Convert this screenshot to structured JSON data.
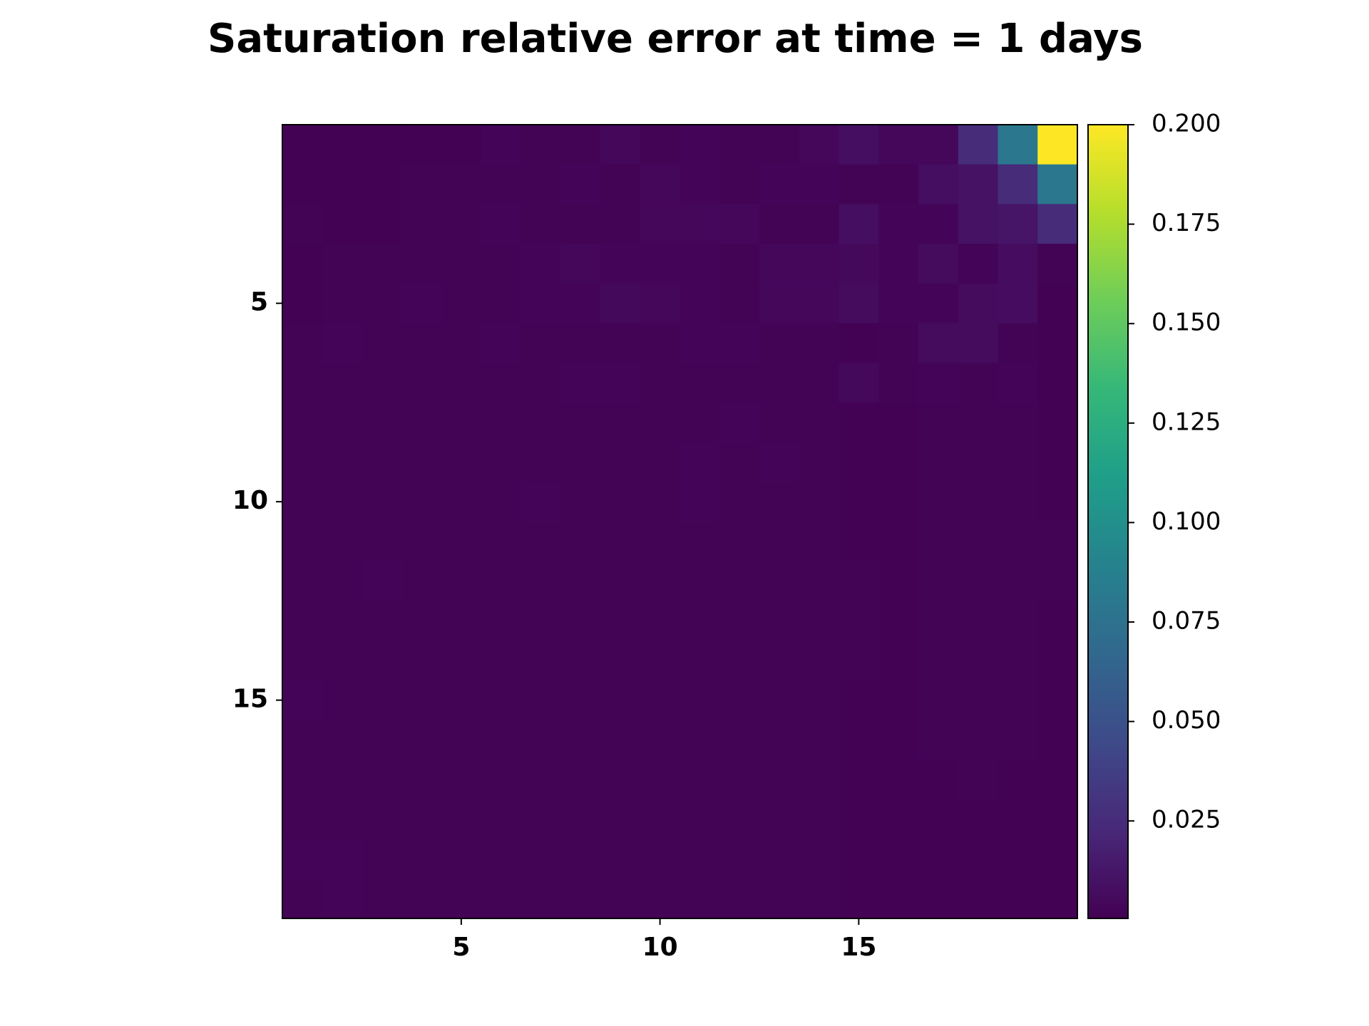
{
  "chart_data": {
    "type": "heatmap",
    "title": "Saturation relative error at time = 1 days",
    "colormap": "viridis",
    "x": [
      1,
      2,
      3,
      4,
      5,
      6,
      7,
      8,
      9,
      10,
      11,
      12,
      13,
      14,
      15,
      16,
      17,
      18,
      19,
      20
    ],
    "y": [
      1,
      2,
      3,
      4,
      5,
      6,
      7,
      8,
      9,
      10,
      11,
      12,
      13,
      14,
      15,
      16,
      17,
      18,
      19,
      20
    ],
    "xlim": [
      0.5,
      20.5
    ],
    "ylim": [
      20.5,
      0.5
    ],
    "xticks": [
      5,
      10,
      15
    ],
    "yticks": [
      5,
      10,
      15
    ],
    "clim": [
      0.0005,
      0.2
    ],
    "cticks": [
      0.025,
      {
        "value": 0.05,
        "label": "0.050"
      },
      0.075,
      {
        "value": 0.1,
        "label": "0.100"
      },
      0.125,
      {
        "value": 0.15,
        "label": "0.150"
      },
      0.175,
      {
        "value": 0.2,
        "label": "0.200"
      }
    ],
    "values": [
      [
        0.001,
        0.001,
        0.001,
        0.001,
        0.001,
        0.003,
        0.002,
        0.002,
        0.004,
        0.002,
        0.003,
        0.002,
        0.002,
        0.004,
        0.008,
        0.004,
        0.004,
        0.025,
        0.08,
        0.2
      ],
      [
        0.001,
        0.001,
        0.001,
        0.002,
        0.002,
        0.002,
        0.002,
        0.003,
        0.002,
        0.004,
        0.003,
        0.002,
        0.003,
        0.003,
        0.002,
        0.002,
        0.008,
        0.01,
        0.025,
        0.08
      ],
      [
        0.002,
        0.001,
        0.001,
        0.002,
        0.002,
        0.003,
        0.002,
        0.002,
        0.002,
        0.004,
        0.004,
        0.004,
        0.002,
        0.002,
        0.008,
        0.003,
        0.003,
        0.01,
        0.012,
        0.025
      ],
      [
        0.001,
        0.002,
        0.002,
        0.002,
        0.002,
        0.002,
        0.003,
        0.004,
        0.003,
        0.003,
        0.003,
        0.002,
        0.004,
        0.004,
        0.005,
        0.003,
        0.006,
        0.003,
        0.007,
        0.002
      ],
      [
        0.001,
        0.002,
        0.002,
        0.003,
        0.002,
        0.002,
        0.003,
        0.003,
        0.005,
        0.004,
        0.003,
        0.002,
        0.004,
        0.004,
        0.006,
        0.003,
        0.003,
        0.006,
        0.007,
        0.001
      ],
      [
        0.002,
        0.003,
        0.002,
        0.002,
        0.002,
        0.003,
        0.002,
        0.002,
        0.002,
        0.002,
        0.003,
        0.003,
        0.002,
        0.002,
        0.001,
        0.002,
        0.006,
        0.006,
        0.002,
        0.001
      ],
      [
        0.002,
        0.002,
        0.002,
        0.002,
        0.002,
        0.002,
        0.002,
        0.003,
        0.003,
        0.002,
        0.002,
        0.002,
        0.002,
        0.002,
        0.005,
        0.002,
        0.003,
        0.002,
        0.003,
        0.001
      ],
      [
        0.002,
        0.002,
        0.002,
        0.002,
        0.002,
        0.002,
        0.002,
        0.002,
        0.002,
        0.002,
        0.002,
        0.003,
        0.002,
        0.002,
        0.001,
        0.001,
        0.002,
        0.002,
        0.002,
        0.001
      ],
      [
        0.002,
        0.002,
        0.002,
        0.002,
        0.002,
        0.002,
        0.002,
        0.002,
        0.002,
        0.002,
        0.003,
        0.002,
        0.003,
        0.002,
        0.001,
        0.001,
        0.002,
        0.002,
        0.002,
        0.001
      ],
      [
        0.002,
        0.002,
        0.002,
        0.002,
        0.002,
        0.002,
        0.003,
        0.002,
        0.002,
        0.002,
        0.003,
        0.002,
        0.002,
        0.002,
        0.001,
        0.001,
        0.002,
        0.002,
        0.002,
        0.001
      ],
      [
        0.002,
        0.002,
        0.002,
        0.002,
        0.002,
        0.002,
        0.002,
        0.002,
        0.002,
        0.002,
        0.002,
        0.002,
        0.002,
        0.002,
        0.001,
        0.001,
        0.002,
        0.002,
        0.002,
        0.002
      ],
      [
        0.002,
        0.002,
        0.003,
        0.002,
        0.002,
        0.002,
        0.002,
        0.002,
        0.002,
        0.002,
        0.002,
        0.002,
        0.002,
        0.002,
        0.002,
        0.001,
        0.002,
        0.002,
        0.002,
        0.002
      ],
      [
        0.002,
        0.002,
        0.002,
        0.002,
        0.002,
        0.002,
        0.002,
        0.002,
        0.002,
        0.002,
        0.002,
        0.002,
        0.002,
        0.002,
        0.002,
        0.001,
        0.002,
        0.002,
        0.002,
        0.001
      ],
      [
        0.002,
        0.002,
        0.002,
        0.002,
        0.002,
        0.002,
        0.002,
        0.002,
        0.002,
        0.002,
        0.002,
        0.002,
        0.002,
        0.002,
        0.002,
        0.001,
        0.002,
        0.002,
        0.002,
        0.001
      ],
      [
        0.003,
        0.002,
        0.002,
        0.002,
        0.002,
        0.002,
        0.002,
        0.002,
        0.002,
        0.002,
        0.002,
        0.002,
        0.002,
        0.002,
        0.001,
        0.001,
        0.002,
        0.002,
        0.002,
        0.001
      ],
      [
        0.002,
        0.002,
        0.002,
        0.002,
        0.002,
        0.002,
        0.002,
        0.002,
        0.002,
        0.002,
        0.002,
        0.002,
        0.002,
        0.002,
        0.001,
        0.001,
        0.002,
        0.002,
        0.002,
        0.001
      ],
      [
        0.002,
        0.002,
        0.002,
        0.002,
        0.002,
        0.002,
        0.002,
        0.002,
        0.002,
        0.002,
        0.002,
        0.002,
        0.002,
        0.002,
        0.001,
        0.001,
        0.001,
        0.002,
        0.001,
        0.001
      ],
      [
        0.002,
        0.002,
        0.002,
        0.002,
        0.002,
        0.002,
        0.002,
        0.002,
        0.002,
        0.002,
        0.002,
        0.002,
        0.002,
        0.002,
        0.001,
        0.001,
        0.001,
        0.001,
        0.001,
        0.001
      ],
      [
        0.003,
        0.003,
        0.002,
        0.002,
        0.002,
        0.002,
        0.002,
        0.002,
        0.002,
        0.002,
        0.002,
        0.002,
        0.002,
        0.002,
        0.001,
        0.001,
        0.001,
        0.001,
        0.001,
        0.001
      ],
      [
        0.002,
        0.003,
        0.002,
        0.002,
        0.002,
        0.002,
        0.002,
        0.002,
        0.002,
        0.002,
        0.002,
        0.002,
        0.002,
        0.002,
        0.001,
        0.001,
        0.001,
        0.001,
        0.001,
        0.001
      ]
    ]
  }
}
